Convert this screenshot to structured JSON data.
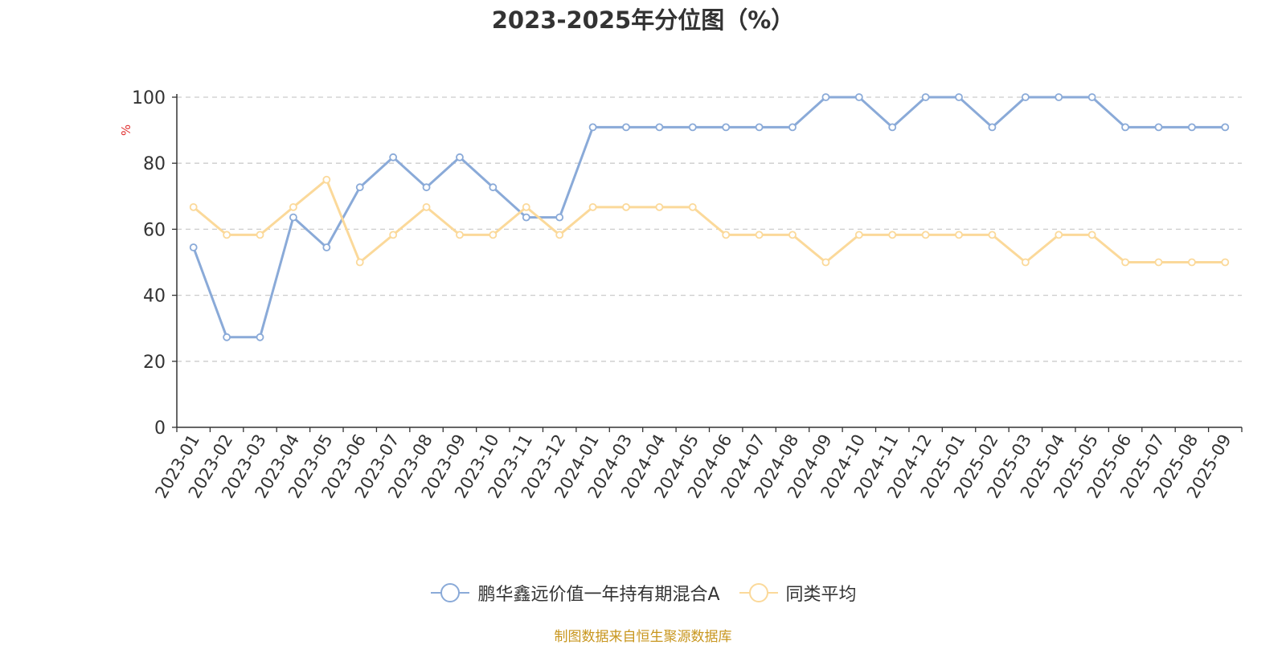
{
  "title": "2023-2025年分位图（%）",
  "source_note": "制图数据来自恒生聚源数据库",
  "colors": {
    "series_fund": "#8aaad8",
    "series_avg": "#fbd99a",
    "unit_label": "#e03030",
    "source_note": "#c8961e",
    "axis": "#333333",
    "grid": "#cccccc"
  },
  "chart_data": {
    "type": "line",
    "title": "2023-2025年分位图（%）",
    "xlabel": "",
    "ylabel": "%",
    "ylim": [
      0,
      100
    ],
    "yticks": [
      0,
      20,
      40,
      60,
      80,
      100
    ],
    "grid": "horizontal-dashed",
    "legend_position": "bottom",
    "categories": [
      "2023-01",
      "2023-02",
      "2023-03",
      "2023-04",
      "2023-05",
      "2023-06",
      "2023-07",
      "2023-08",
      "2023-09",
      "2023-10",
      "2023-11",
      "2023-12",
      "2024-01",
      "2024-03",
      "2024-04",
      "2024-05",
      "2024-06",
      "2024-07",
      "2024-08",
      "2024-09",
      "2024-10",
      "2024-11",
      "2024-12",
      "2025-01",
      "2025-02",
      "2025-03",
      "2025-04",
      "2025-05",
      "2025-06",
      "2025-07",
      "2025-08",
      "2025-09"
    ],
    "series": [
      {
        "name": "鹏华鑫远价值一年持有期混合A",
        "values": [
          54.5,
          27.3,
          27.3,
          63.6,
          54.5,
          72.7,
          81.8,
          72.7,
          81.8,
          72.7,
          63.6,
          63.6,
          90.9,
          90.9,
          90.9,
          90.9,
          90.9,
          90.9,
          90.9,
          100,
          100,
          90.9,
          100,
          100,
          90.9,
          100,
          100,
          100,
          90.9,
          90.9,
          90.9,
          90.9
        ]
      },
      {
        "name": "同类平均",
        "values": [
          66.7,
          58.3,
          58.3,
          66.7,
          75.0,
          50.0,
          58.3,
          66.7,
          58.3,
          58.3,
          66.7,
          58.3,
          66.7,
          66.7,
          66.7,
          66.7,
          58.3,
          58.3,
          58.3,
          50.0,
          58.3,
          58.3,
          58.3,
          58.3,
          58.3,
          50.0,
          58.3,
          58.3,
          50.0,
          50.0,
          50.0,
          50.0
        ]
      }
    ]
  }
}
